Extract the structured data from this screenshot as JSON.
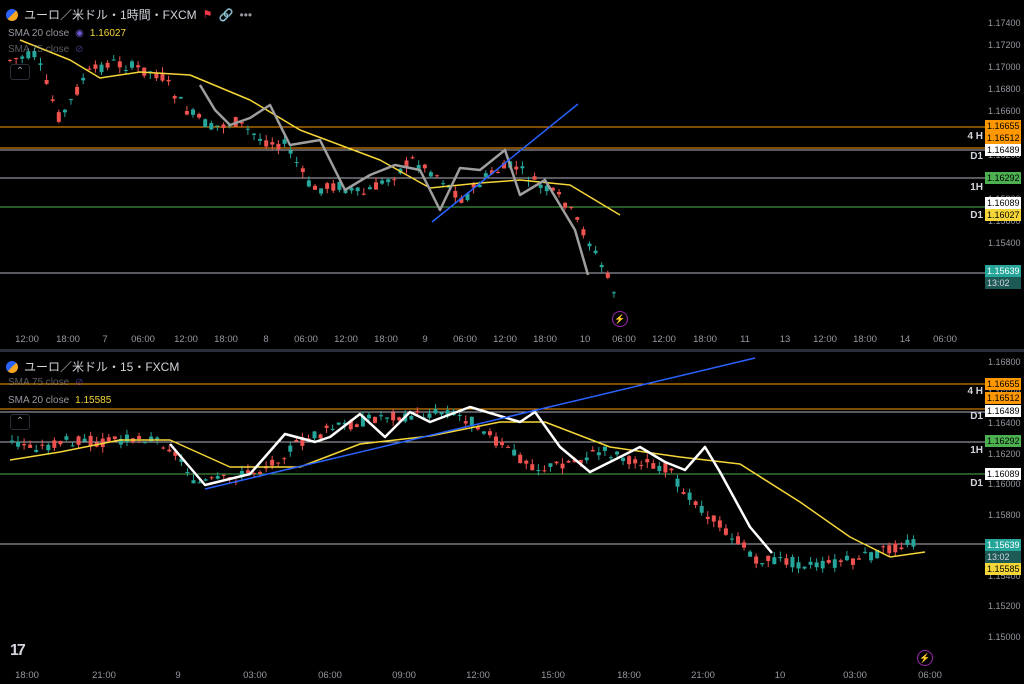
{
  "top": {
    "symbol": "ユーロ／米ドル・1時間・FXCM",
    "sma20_label": "SMA 20 close",
    "sma20_value": "1.16027",
    "sma75_label": "SMA 75 close",
    "price_axis": [
      "1.17400",
      "1.17200",
      "1.17000",
      "1.16800",
      "1.16600",
      "1.16400",
      "1.16200",
      "1.16000",
      "1.15800",
      "1.15600",
      "1.15400"
    ],
    "time_axis": [
      "12:00",
      "18:00",
      "7",
      "06:00",
      "12:00",
      "18:00",
      "8",
      "06:00",
      "12:00",
      "18:00",
      "9",
      "06:00",
      "12:00",
      "18:00",
      "10",
      "06:00",
      "12:00",
      "18:00",
      "11",
      "13",
      "12:00",
      "18:00",
      "14",
      "06:00"
    ],
    "tags": {
      "h4a": "1.16655",
      "h4b": "1.16512",
      "d1a": "1.16489",
      "h1": "1.16292",
      "h1b": "1.16089",
      "d1b": "1.16027",
      "last": "1.15639",
      "countdown": "13:02"
    },
    "tf_labels": {
      "h4": "4 H",
      "d1": "D1",
      "h1": "1H",
      "d1b": "D1"
    }
  },
  "bottom": {
    "symbol": "ユーロ／米ドル・15・FXCM",
    "sma75_label": "SMA 75 close",
    "sma20_label": "SMA 20 close",
    "sma20_value": "1.15585",
    "price_axis": [
      "1.16800",
      "1.16600",
      "1.16400",
      "1.16200",
      "1.16000",
      "1.15800",
      "1.15600",
      "1.15400",
      "1.15200",
      "1.15000"
    ],
    "time_axis": [
      "18:00",
      "21:00",
      "9",
      "03:00",
      "06:00",
      "09:00",
      "12:00",
      "15:00",
      "18:00",
      "21:00",
      "10",
      "03:00",
      "06:00"
    ],
    "tags": {
      "h4a": "1.16655",
      "h4b": "1.16512",
      "d1a": "1.16489",
      "h1": "1.16292",
      "h1b": "1.16089",
      "last": "1.15639",
      "countdown": "13:02",
      "sma": "1.15585"
    },
    "tf_labels": {
      "h4": "4 H",
      "d1": "D1",
      "h1": "1H",
      "d1b": "D1"
    }
  },
  "colors": {
    "up": "#26a69a",
    "down": "#ef5350",
    "sma20": "#f5d638",
    "trend": "#2962ff",
    "hline4h": "#ff9800",
    "hline1h": "#4caf50",
    "hline": "#b2b5be"
  },
  "icons": [
    "link-icon",
    "more-icon",
    "flag-icon",
    "eye-off-icon",
    "collapse-icon",
    "tradingview-logo",
    "lightning-icon"
  ]
}
